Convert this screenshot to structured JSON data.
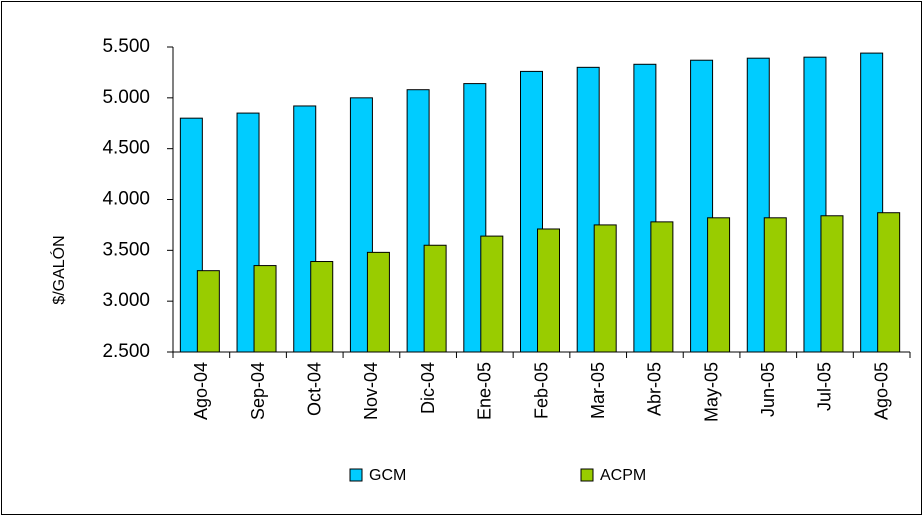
{
  "chart_data": {
    "type": "bar",
    "y_label": "$/GALÓN",
    "categories": [
      "Ago-04",
      "Sep-04",
      "Oct-04",
      "Nov-04",
      "Dic-04",
      "Ene-05",
      "Feb-05",
      "Mar-05",
      "Abr-05",
      "May-05",
      "Jun-05",
      "Jul-05",
      "Ago-05"
    ],
    "series": [
      {
        "name": "GCM",
        "color": "#00ccff",
        "values": [
          4800,
          4850,
          4920,
          5000,
          5080,
          5140,
          5260,
          5300,
          5330,
          5370,
          5390,
          5400,
          5440
        ]
      },
      {
        "name": "ACPM",
        "color": "#99cc00",
        "values": [
          3300,
          3350,
          3390,
          3480,
          3550,
          3640,
          3710,
          3750,
          3780,
          3820,
          3820,
          3840,
          3870
        ]
      }
    ],
    "ylim": [
      2500,
      5500
    ],
    "yticks": [
      {
        "value": 2500,
        "label": "2.500"
      },
      {
        "value": 3000,
        "label": "3.000"
      },
      {
        "value": 3500,
        "label": "3.500"
      },
      {
        "value": 4000,
        "label": "4.000"
      },
      {
        "value": 4500,
        "label": "4.500"
      },
      {
        "value": 5000,
        "label": "5.000"
      },
      {
        "value": 5500,
        "label": "5.500"
      }
    ],
    "grid": false,
    "legend": "bottom"
  }
}
